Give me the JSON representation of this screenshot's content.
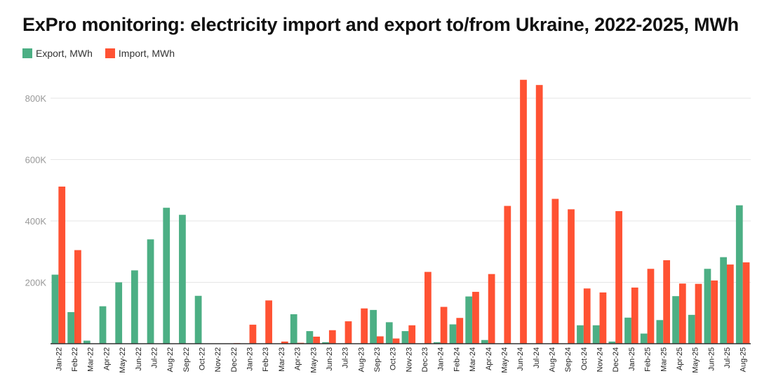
{
  "title": "ExPro monitoring: electricity import and export to/from Ukraine, 2022-2025, MWh",
  "colors": {
    "export": "#4caf84",
    "import": "#ff5233",
    "grid": "#e6e6e6",
    "axis": "#333333"
  },
  "chart_data": {
    "type": "bar",
    "title": "ExPro monitoring: electricity import and export to/from Ukraine, 2022-2025, MWh",
    "xlabel": "",
    "ylabel": "",
    "ylim": [
      0,
      880000
    ],
    "yticks": [
      {
        "value": 200000,
        "label": "200K"
      },
      {
        "value": 400000,
        "label": "400K"
      },
      {
        "value": 600000,
        "label": "600K"
      },
      {
        "value": 800000,
        "label": "800K"
      }
    ],
    "grid": true,
    "legend_position": "top-left",
    "categories": [
      "Jan-22",
      "Feb-22",
      "Mar-22",
      "Apr-22",
      "May-22",
      "Jun-22",
      "Jul-22",
      "Aug-22",
      "Sep-22",
      "Oct-22",
      "Nov-22",
      "Dec-22",
      "Jan-23",
      "Feb-23",
      "Mar-23",
      "Apr-23",
      "May-23",
      "Jun-23",
      "Jul-23",
      "Aug-23",
      "Sep-23",
      "Oct-23",
      "Nov-23",
      "Dec-23",
      "Jan-24",
      "Feb-24",
      "Mar-24",
      "Apr-24",
      "May-24",
      "Jun-24",
      "Jul-24",
      "Aug-24",
      "Sep-24",
      "Oct-24",
      "Nov-24",
      "Dec-24",
      "Jan-25",
      "Feb-25",
      "Mar-25",
      "Apr-25",
      "May-25",
      "Jun-25",
      "Jul-25",
      "Aug-25"
    ],
    "series": [
      {
        "name": "Export, MWh",
        "color": "#4caf84",
        "values": [
          225000,
          103000,
          10000,
          122000,
          200000,
          239000,
          340000,
          443000,
          420000,
          156000,
          0,
          0,
          0,
          0,
          0,
          96000,
          41000,
          5000,
          0,
          0,
          110000,
          70000,
          41000,
          0,
          5000,
          63000,
          154000,
          12000,
          0,
          0,
          0,
          0,
          0,
          60000,
          60000,
          7000,
          85000,
          33000,
          77000,
          155000,
          94000,
          244000,
          282000,
          451000
        ]
      },
      {
        "name": "Import, MWh",
        "color": "#ff5233",
        "values": [
          512000,
          305000,
          0,
          0,
          0,
          0,
          0,
          0,
          0,
          0,
          0,
          2000,
          62000,
          141000,
          7000,
          3000,
          23000,
          44000,
          73000,
          115000,
          24000,
          17000,
          60000,
          234000,
          120000,
          84000,
          169000,
          227000,
          449000,
          860000,
          843000,
          472000,
          438000,
          180000,
          167000,
          432000,
          183000,
          244000,
          272000,
          196000,
          195000,
          206000,
          258000,
          265000
        ]
      }
    ]
  }
}
